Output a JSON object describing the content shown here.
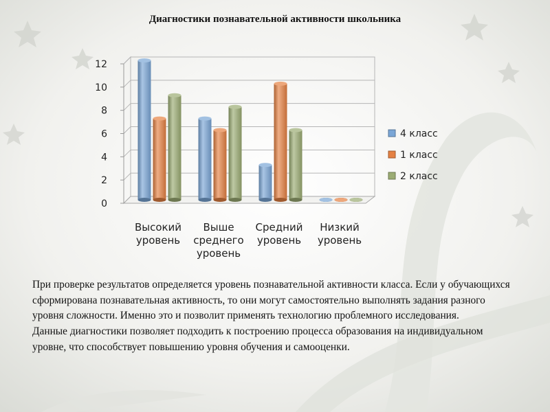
{
  "title": "Диагностики познавательной активности школьника",
  "chart_data": {
    "type": "bar",
    "categories": [
      [
        "Высокий",
        "уровень"
      ],
      [
        "Выше",
        "среднего",
        "уровень"
      ],
      [
        "Средний",
        "уровень"
      ],
      [
        "Низкий",
        "уровень"
      ]
    ],
    "series": [
      {
        "name": "4 класс",
        "values": [
          12,
          7,
          3,
          0
        ],
        "color": "#7aa6d6"
      },
      {
        "name": "1 класс",
        "values": [
          7,
          6,
          10,
          0
        ],
        "color": "#e58143"
      },
      {
        "name": "2 класс",
        "values": [
          9,
          8,
          6,
          0
        ],
        "color": "#9bac73"
      }
    ],
    "ylim": [
      0,
      12
    ],
    "yticks": [
      "0",
      "2",
      "4",
      "6",
      "8",
      "10",
      "12"
    ],
    "grid": true,
    "legend": "right"
  },
  "body": {
    "paragraph1": "При проверке результатов определяется уровень познавательной активности класса. Если у обучающихся сформирована познавательная активность, то они могут самостоятельно выполнять задания разного уровня сложности. Именно это и позволит применять технологию проблемного исследования.",
    "paragraph2": "Данные диагностики позволяет подходить к построению процесса образования на индивидуальном уровне, что способствует повышению уровня обучения и самооценки."
  }
}
